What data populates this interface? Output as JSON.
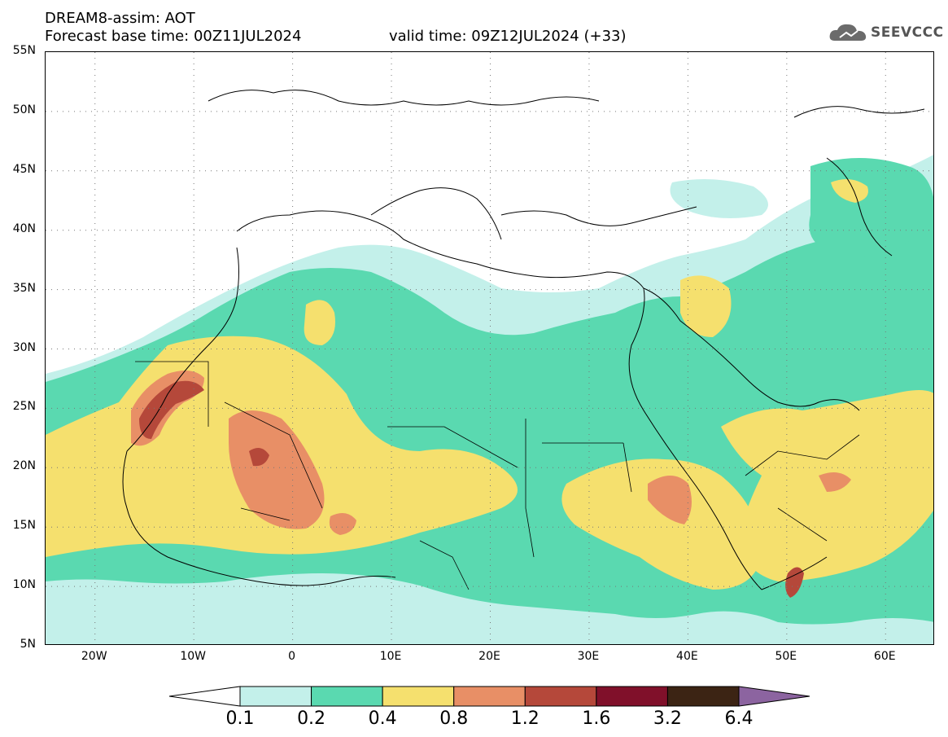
{
  "header": {
    "line1": "DREAM8-assim: AOT",
    "line2": "Forecast base time: 00Z11JUL2024",
    "valid": "valid time: 09Z12JUL2024 (+33)"
  },
  "logo": {
    "text": "SEEVCCC",
    "icon": "cloud-icon"
  },
  "map": {
    "latitude_labels": [
      "55N",
      "50N",
      "45N",
      "40N",
      "35N",
      "30N",
      "25N",
      "20N",
      "15N",
      "10N",
      "5N"
    ],
    "longitude_labels": [
      "20W",
      "10W",
      "0",
      "10E",
      "20E",
      "30E",
      "40E",
      "50E",
      "60E"
    ],
    "lat_range": [
      5,
      55
    ],
    "lon_range": [
      -25,
      65
    ],
    "grid": true
  },
  "colorbar": {
    "labels": [
      "0.1",
      "0.2",
      "0.4",
      "0.8",
      "1.2",
      "1.6",
      "3.2",
      "6.4"
    ],
    "colors": [
      "#ffffff",
      "#c3f0ea",
      "#5ad9b0",
      "#f5e06e",
      "#e88f66",
      "#b5483a",
      "#80102a",
      "#3c2414",
      "#8c64a0"
    ]
  }
}
